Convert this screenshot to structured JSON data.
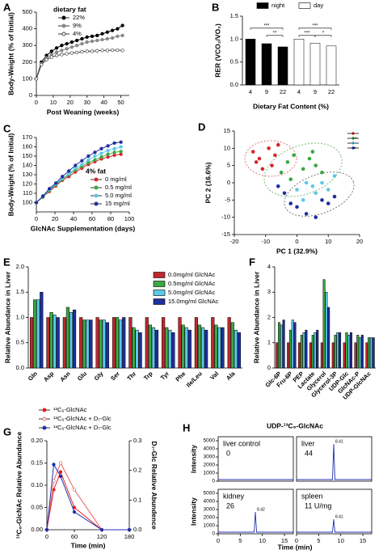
{
  "chart_data": [
    {
      "panel": "A",
      "type": "line",
      "ylabel": "Body-Weight (% of Initial)",
      "xlabel": "Post Weaning (weeks)",
      "legend_title": "dietary fat",
      "x": [
        0,
        3,
        6,
        9,
        12,
        15,
        18,
        21,
        24,
        27,
        30,
        33,
        36,
        39,
        42,
        45,
        48,
        51
      ],
      "series": [
        {
          "name": "22%",
          "color": "#000000",
          "values": [
            100,
            200,
            240,
            265,
            285,
            300,
            310,
            320,
            330,
            340,
            350,
            355,
            360,
            370,
            380,
            390,
            400,
            420
          ]
        },
        {
          "name": "9%",
          "color": "#888888",
          "values": [
            100,
            190,
            225,
            245,
            260,
            270,
            280,
            290,
            300,
            310,
            320,
            325,
            330,
            335,
            340,
            345,
            355,
            360
          ]
        },
        {
          "name": "4%",
          "color": "#444444",
          "marker": "open",
          "values": [
            100,
            185,
            215,
            230,
            240,
            245,
            250,
            255,
            258,
            262,
            265,
            265,
            268,
            270,
            270,
            272,
            272,
            270
          ]
        }
      ],
      "xlim": [
        0,
        55
      ],
      "xticks": [
        0,
        10,
        20,
        30,
        40,
        50
      ],
      "ylim": [
        0,
        500
      ],
      "yticks": [
        0,
        100,
        200,
        300,
        400,
        500
      ]
    },
    {
      "panel": "B",
      "type": "bar",
      "ylabel": "RER (VCO₂/VO₂)",
      "xlabel": "Dietary Fat Content (%)",
      "categories": [
        "4",
        "9",
        "22"
      ],
      "series": [
        {
          "name": "night",
          "color": "#000000",
          "values": [
            1.0,
            0.9,
            0.83
          ]
        },
        {
          "name": "day",
          "color": "#ffffff",
          "values": [
            1.0,
            0.91,
            0.85
          ]
        }
      ],
      "annotations": [
        "***",
        "**",
        "***",
        "***",
        "*"
      ],
      "ylim": [
        0,
        1.5
      ],
      "yticks": [
        {
          "value": 0,
          "label": "0.0"
        },
        {
          "value": 0.5,
          "label": "0.5"
        },
        {
          "value": 1,
          "label": "1.0"
        },
        {
          "value": 1.5,
          "label": "1.5"
        }
      ]
    },
    {
      "panel": "C",
      "type": "line",
      "ylabel": "Body-Weight (% of Initial)",
      "xlabel": "GlcNAc Supplementation (days)",
      "legend_title": "4% fat",
      "x": [
        0,
        7,
        14,
        21,
        28,
        35,
        42,
        49,
        56,
        63,
        70,
        77,
        84,
        91
      ],
      "series": [
        {
          "name": "0 mg/ml",
          "color": "#d7262b",
          "values": [
            100,
            106,
            112,
            118,
            124,
            128,
            133,
            137,
            141,
            144,
            147,
            149,
            151,
            152
          ]
        },
        {
          "name": "0.5 mg/ml",
          "color": "#3aa843",
          "values": [
            100,
            106,
            113,
            119,
            125,
            130,
            135,
            139,
            143,
            146,
            149,
            152,
            154,
            155
          ]
        },
        {
          "name": "5.0 mg/ml",
          "color": "#5cc9e6",
          "values": [
            100,
            107,
            114,
            120,
            126,
            131,
            137,
            141,
            146,
            150,
            153,
            156,
            158,
            160
          ]
        },
        {
          "name": "15 mg/ml",
          "color": "#1f2f9e",
          "values": [
            100,
            107,
            115,
            121,
            128,
            134,
            140,
            145,
            150,
            154,
            158,
            161,
            164,
            165
          ]
        }
      ],
      "xlim": [
        0,
        100
      ],
      "xticks": [
        0,
        20,
        40,
        60,
        80,
        100
      ],
      "ylim": [
        90,
        170
      ],
      "yticks": [
        100,
        110,
        120,
        130,
        140,
        150,
        160,
        170
      ]
    },
    {
      "panel": "D",
      "type": "scatter",
      "xlabel": "PC 1 (32.9%)",
      "ylabel": "PC 2 (16.6%)",
      "series": [
        {
          "name": "0",
          "color": "#d7262b",
          "x": [
            -14,
            -12,
            -9,
            -8,
            -6,
            -11,
            -7,
            -13
          ],
          "y": [
            9,
            7,
            10,
            5,
            11,
            4,
            8,
            6
          ]
        },
        {
          "name": "0.5",
          "color": "#3aa843",
          "x": [
            -5,
            -3,
            -1,
            2,
            4,
            6,
            -2,
            8,
            5
          ],
          "y": [
            3,
            6,
            8,
            4,
            7,
            5,
            1,
            3,
            9
          ]
        },
        {
          "name": "5",
          "color": "#5cc9e6",
          "x": [
            0,
            3,
            6,
            8,
            10,
            2,
            12,
            5
          ],
          "y": [
            -2,
            0,
            -3,
            0,
            -2,
            -5,
            2,
            -1
          ]
        },
        {
          "name": "15",
          "color": "#1f2f9e",
          "x": [
            -4,
            -2,
            0,
            3,
            6,
            8,
            10,
            12,
            -6
          ],
          "y": [
            -3,
            -6,
            -7,
            -9,
            -10,
            -5,
            -6,
            -4,
            -1
          ]
        }
      ],
      "xlim": [
        -20,
        20
      ],
      "xticks": [
        -20,
        -10,
        0,
        10,
        20
      ],
      "ylim": [
        -15,
        15
      ],
      "yticks": [
        -15,
        -10,
        -5,
        0,
        5,
        10,
        15
      ]
    },
    {
      "panel": "E",
      "type": "bar",
      "ylabel": "Relative Abundance in Liver",
      "categories": [
        "Gln",
        "Asp",
        "Asn",
        "Glu",
        "Gly",
        "Ser",
        "Thr",
        "Trp",
        "Tyr",
        "Phe",
        "Ile/Leu",
        "Val",
        "Ala"
      ],
      "series": [
        {
          "name": "0.0mg/ml GlcNAc",
          "color": "#c0282d",
          "values": [
            1.0,
            1.0,
            1.0,
            1.0,
            1.0,
            1.0,
            1.0,
            1.0,
            1.0,
            1.0,
            1.0,
            1.0,
            1.0
          ]
        },
        {
          "name": "0.5mg/ml GlcNAc",
          "color": "#3aa843",
          "values": [
            1.35,
            1.1,
            1.2,
            0.95,
            0.95,
            1.0,
            0.8,
            0.85,
            0.8,
            0.85,
            0.85,
            0.85,
            0.9
          ]
        },
        {
          "name": "5.0mg/ml GlcNAc",
          "color": "#5cc9e6",
          "values": [
            1.35,
            1.05,
            1.1,
            0.95,
            0.95,
            0.95,
            0.75,
            0.8,
            0.75,
            0.8,
            0.8,
            0.8,
            0.75
          ]
        },
        {
          "name": "15.0mg/ml GlcNAc",
          "color": "#1f2f9e",
          "values": [
            1.5,
            1.0,
            1.15,
            0.95,
            0.9,
            1.0,
            0.7,
            0.75,
            0.7,
            0.75,
            0.75,
            0.8,
            0.7
          ]
        }
      ],
      "ylim": [
        0,
        2
      ],
      "yticks": [
        {
          "value": 0,
          "label": "0.0"
        },
        {
          "value": 0.5,
          "label": "0.5"
        },
        {
          "value": 1,
          "label": "1.0"
        },
        {
          "value": 1.5,
          "label": "1.5"
        },
        {
          "value": 2,
          "label": "2.0"
        }
      ]
    },
    {
      "panel": "F",
      "type": "bar",
      "ylabel": "Relative Abundance in Liver",
      "categories": [
        "Glc-6P",
        "Fru-6P",
        "PEP",
        "Lactate",
        "Glycerol",
        "Glycerol-3P",
        "UDP-Glc",
        "GlcNAc-P",
        "UDP-GlcNAc"
      ],
      "series": [
        {
          "name": "0.0mg/ml GlcNAc",
          "color": "#c0282d",
          "values": [
            1,
            1,
            1,
            1,
            1,
            1,
            1,
            1,
            1
          ]
        },
        {
          "name": "0.5mg/ml GlcNAc",
          "color": "#3aa843",
          "values": [
            1.8,
            1.5,
            1.3,
            1.3,
            3.5,
            1.3,
            1.4,
            1.3,
            1.2
          ]
        },
        {
          "name": "5.0mg/ml GlcNAc",
          "color": "#5cc9e6",
          "values": [
            1.7,
            1.9,
            1.4,
            1.4,
            3.0,
            1.4,
            1.3,
            1.2,
            1.2
          ]
        },
        {
          "name": "15.0mg/ml GlcNAc",
          "color": "#1f2f9e",
          "values": [
            1.9,
            1.8,
            1.5,
            1.5,
            2.4,
            1.4,
            1.4,
            1.3,
            1.2
          ]
        }
      ],
      "ylim": [
        0,
        4
      ],
      "yticks": [
        0,
        1,
        2,
        3,
        4
      ]
    },
    {
      "panel": "G",
      "type": "line",
      "ylabel": "¹³C₆-GlcNAc Relative Abundance",
      "y2label": "D₇-Glc Relative Abundence",
      "xlabel": "Time (min)",
      "x": [
        0,
        15,
        30,
        60,
        120,
        180
      ],
      "series": [
        {
          "name": "¹³C₆-GlcNAc",
          "color": "#e02020",
          "values": [
            0,
            0.09,
            0.13,
            0.05,
            0,
            0
          ]
        },
        {
          "name": "¹³C₆-GlcNAc + D₇-Glc",
          "color": "#e86060",
          "marker": "open",
          "values": [
            0,
            0.11,
            0.15,
            0.09,
            0,
            0
          ]
        },
        {
          "name": "¹³C₆-GlcNAc + D₇-Glc",
          "color": "#2030b0",
          "axis": "y2",
          "values": [
            0,
            0.22,
            0.18,
            0.06,
            0,
            0
          ]
        }
      ],
      "xlim": [
        0,
        180
      ],
      "xticks": [
        0,
        60,
        120,
        180
      ],
      "ylim": [
        0,
        0.2
      ],
      "yticks": [
        {
          "value": 0,
          "label": "0.00"
        },
        {
          "value": 0.05,
          "label": "0.05"
        },
        {
          "value": 0.1,
          "label": "0.10"
        },
        {
          "value": 0.15,
          "label": "0.15"
        },
        {
          "value": 0.2,
          "label": "0.20"
        }
      ],
      "y2lim": [
        0,
        0.3
      ],
      "y2ticks": [
        {
          "value": 0,
          "label": "0.0"
        },
        {
          "value": 0.1,
          "label": "0.1"
        },
        {
          "value": 0.2,
          "label": "0.2"
        },
        {
          "value": 0.3,
          "label": "0.3"
        }
      ]
    },
    {
      "panel": "H",
      "type": "chromatogram",
      "title": "UDP-¹³C₆-GlcNAc",
      "ylabel": "Intensity",
      "xlabel": "Time (min)",
      "panels": [
        {
          "label": "liver control",
          "amount": 0
        },
        {
          "label": "liver",
          "amount": 44,
          "peak_rt": 8.41,
          "peak_height": 4600
        },
        {
          "label": "kidney",
          "amount": 26,
          "peak_rt": 8.42,
          "peak_height": 2700
        },
        {
          "label": "spleen",
          "amount": "11 U/mg",
          "peak_rt": 8.41,
          "peak_height": 1800
        }
      ],
      "xlim": [
        0,
        17
      ],
      "xticks": [
        0,
        5,
        10,
        15
      ],
      "ylim": [
        0,
        5500
      ],
      "yticks": [
        0,
        1000,
        2000,
        3000,
        4000,
        5000
      ]
    }
  ]
}
